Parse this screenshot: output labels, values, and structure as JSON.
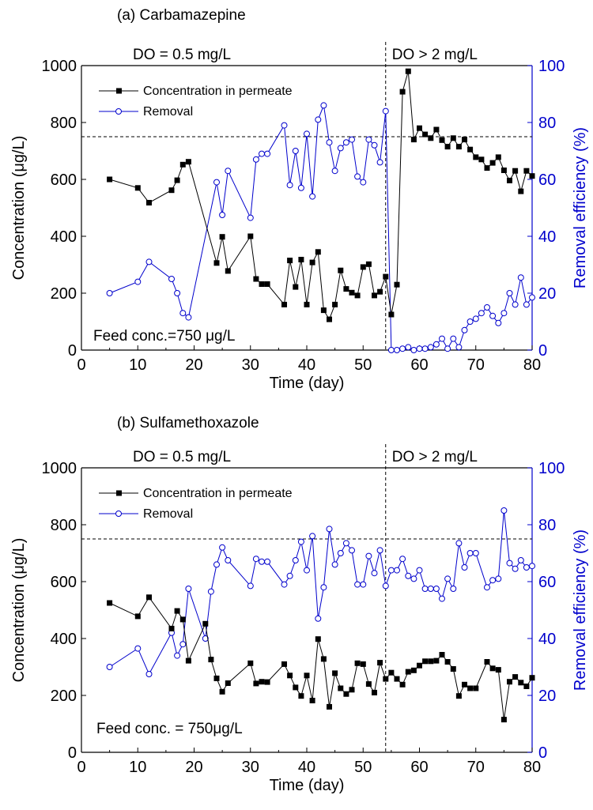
{
  "chart_data": [
    {
      "type": "line",
      "panel_title": "(a) Carbamazepine",
      "xlabel": "Time (day)",
      "ylabel": "Concentration (μg/L)",
      "y2label": "Removal efficiency (%)",
      "xlim": [
        0,
        80
      ],
      "ylim": [
        0,
        1000
      ],
      "y2lim": [
        0,
        100
      ],
      "xticks": [
        0,
        10,
        20,
        30,
        40,
        50,
        60,
        70,
        80
      ],
      "yticks": [
        0,
        200,
        400,
        600,
        800,
        1000
      ],
      "y2ticks": [
        0,
        20,
        40,
        60,
        80,
        100
      ],
      "grid": false,
      "legend_position": "top-left",
      "phase_left_label": "DO = 0.5 mg/L",
      "phase_right_label": "DO > 2 mg/L",
      "phase_boundary_day": 54,
      "feed_concentration": 750,
      "feed_label": "Feed conc.=750 μg/L",
      "series": [
        {
          "name": "Concentration in permeate",
          "axis": "left",
          "marker": "filled-square",
          "color": "#000000",
          "x": [
            5,
            10,
            12,
            16,
            17,
            18,
            19,
            24,
            25,
            26,
            30,
            31,
            32,
            33,
            36,
            37,
            38,
            39,
            40,
            41,
            42,
            43,
            44,
            45,
            46,
            47,
            48,
            49,
            50,
            51,
            52,
            53,
            54,
            55,
            56,
            57,
            58,
            59,
            60,
            61,
            62,
            63,
            64,
            65,
            66,
            67,
            68,
            69,
            70,
            71,
            72,
            73,
            74,
            75,
            76,
            77,
            78,
            79,
            80
          ],
          "values": [
            600,
            570,
            518,
            562,
            597,
            652,
            662,
            306,
            398,
            278,
            400,
            250,
            232,
            232,
            160,
            315,
            222,
            318,
            160,
            308,
            345,
            140,
            108,
            160,
            280,
            215,
            202,
            192,
            292,
            302,
            192,
            205,
            258,
            125,
            230,
            908,
            980,
            740,
            780,
            758,
            745,
            775,
            738,
            715,
            745,
            715,
            740,
            705,
            678,
            670,
            640,
            658,
            678,
            632,
            596,
            630,
            558,
            630,
            612
          ]
        },
        {
          "name": "Removal",
          "axis": "right",
          "marker": "open-circle",
          "color": "#0000cc",
          "x": [
            5,
            10,
            12,
            16,
            17,
            18,
            19,
            24,
            25,
            26,
            30,
            31,
            32,
            33,
            36,
            37,
            38,
            39,
            40,
            41,
            42,
            43,
            44,
            45,
            46,
            47,
            48,
            49,
            50,
            51,
            52,
            53,
            54,
            55,
            56,
            57,
            58,
            59,
            60,
            61,
            62,
            63,
            64,
            65,
            66,
            67,
            68,
            69,
            70,
            71,
            72,
            73,
            74,
            75,
            76,
            77,
            78,
            79,
            80
          ],
          "values": [
            20,
            24,
            31,
            25,
            20,
            13,
            11.5,
            59,
            47.5,
            63,
            46.5,
            67,
            69,
            69,
            79,
            58,
            70,
            57,
            76,
            54,
            81,
            86,
            73,
            63,
            71,
            73,
            74,
            61,
            59,
            74,
            72,
            66,
            84,
            0,
            0,
            0.5,
            1,
            0,
            0.5,
            0.5,
            1,
            2,
            4,
            0.5,
            4,
            1,
            7,
            10,
            11,
            13,
            15,
            12,
            9.5,
            13,
            20,
            16,
            25.5,
            16,
            18.5
          ]
        }
      ]
    },
    {
      "type": "line",
      "panel_title": "(b) Sulfamethoxazole",
      "xlabel": "Time (day)",
      "ylabel": "Concentration (μg/L)",
      "y2label": "Removal efficiency (%)",
      "xlim": [
        0,
        80
      ],
      "ylim": [
        0,
        1000
      ],
      "y2lim": [
        0,
        100
      ],
      "xticks": [
        0,
        10,
        20,
        30,
        40,
        50,
        60,
        70,
        80
      ],
      "yticks": [
        0,
        200,
        400,
        600,
        800,
        1000
      ],
      "y2ticks": [
        0,
        20,
        40,
        60,
        80,
        100
      ],
      "grid": false,
      "legend_position": "top-left",
      "phase_left_label": "DO = 0.5 mg/L",
      "phase_right_label": "DO > 2 mg/L",
      "phase_boundary_day": 54,
      "feed_concentration": 750,
      "feed_label": "Feed conc. = 750μg/L",
      "series": [
        {
          "name": "Concentration in permeate",
          "axis": "left",
          "marker": "filled-square",
          "color": "#000000",
          "x": [
            5,
            10,
            12,
            16,
            17,
            18,
            19,
            22,
            23,
            24,
            25,
            26,
            30,
            31,
            32,
            33,
            36,
            37,
            38,
            39,
            40,
            41,
            42,
            43,
            44,
            45,
            46,
            47,
            48,
            49,
            50,
            51,
            52,
            53,
            54,
            55,
            56,
            57,
            58,
            59,
            60,
            61,
            62,
            63,
            64,
            65,
            66,
            67,
            68,
            69,
            70,
            72,
            73,
            74,
            75,
            76,
            77,
            78,
            79,
            80
          ],
          "values": [
            525,
            478,
            545,
            435,
            497,
            467,
            322,
            452,
            326,
            260,
            213,
            243,
            313,
            242,
            248,
            247,
            310,
            270,
            228,
            198,
            270,
            182,
            398,
            328,
            160,
            278,
            225,
            205,
            220,
            313,
            310,
            240,
            210,
            315,
            258,
            280,
            258,
            238,
            283,
            288,
            305,
            320,
            320,
            322,
            343,
            318,
            293,
            198,
            238,
            225,
            225,
            318,
            295,
            290,
            115,
            248,
            265,
            245,
            232,
            262
          ]
        },
        {
          "name": "Removal",
          "axis": "right",
          "marker": "open-circle",
          "color": "#0000cc",
          "x": [
            5,
            10,
            12,
            16,
            17,
            18,
            19,
            22,
            23,
            24,
            25,
            26,
            30,
            31,
            32,
            33,
            36,
            37,
            38,
            39,
            40,
            41,
            42,
            43,
            44,
            45,
            46,
            47,
            48,
            49,
            50,
            51,
            52,
            53,
            54,
            55,
            56,
            57,
            58,
            59,
            60,
            61,
            62,
            63,
            64,
            65,
            66,
            67,
            68,
            69,
            70,
            72,
            73,
            74,
            75,
            76,
            77,
            78,
            79,
            80
          ],
          "values": [
            30,
            36.5,
            27.5,
            42,
            34,
            38,
            57.5,
            40,
            56.5,
            66,
            72,
            67.5,
            58.5,
            68,
            67,
            67,
            59,
            62,
            67.5,
            74,
            64,
            76,
            47,
            58,
            78.5,
            66,
            70,
            73.5,
            71,
            59,
            59,
            69,
            63,
            71,
            58.5,
            64,
            64,
            68,
            62,
            61,
            64,
            57.5,
            57.5,
            57.5,
            54,
            61,
            57.5,
            73.5,
            65,
            70,
            70,
            58,
            60.5,
            61,
            85,
            66.5,
            64.5,
            67.5,
            65,
            65.5
          ]
        }
      ]
    }
  ]
}
